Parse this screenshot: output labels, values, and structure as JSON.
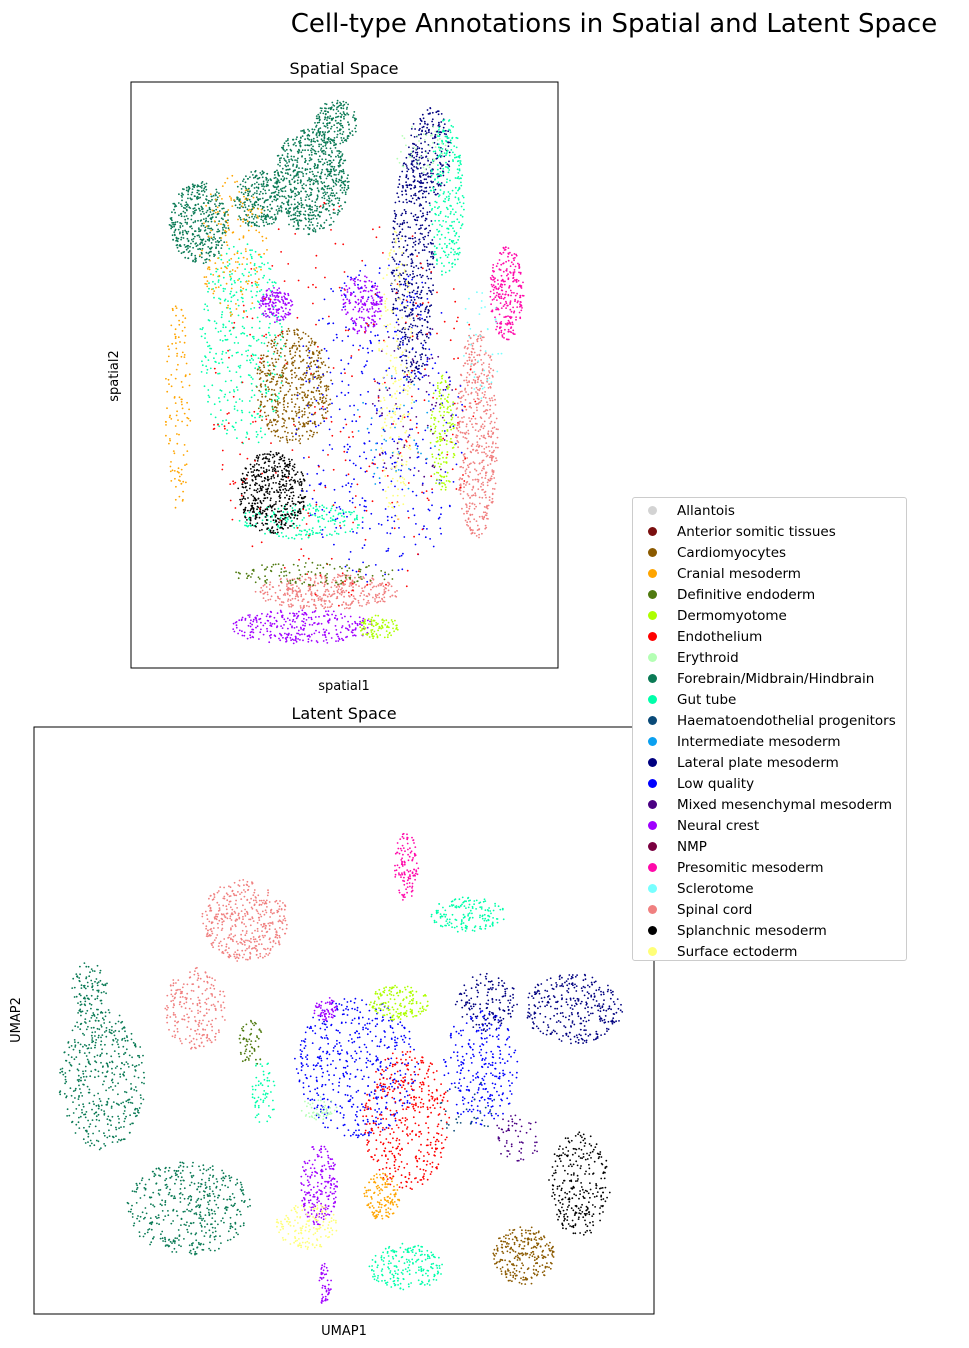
{
  "figure": {
    "title": "Cell-type Annotations in Spatial and Latent Space"
  },
  "categories": [
    {
      "name": "Allantois",
      "color": "#d3d3d3"
    },
    {
      "name": "Anterior somitic tissues",
      "color": "#7a0f0f"
    },
    {
      "name": "Cardiomyocytes",
      "color": "#8b5a00"
    },
    {
      "name": "Cranial mesoderm",
      "color": "#ffa500"
    },
    {
      "name": "Definitive endoderm",
      "color": "#4f7a10"
    },
    {
      "name": "Dermomyotome",
      "color": "#adff00"
    },
    {
      "name": "Endothelium",
      "color": "#ff0000"
    },
    {
      "name": "Erythroid",
      "color": "#b4ffb4"
    },
    {
      "name": "Forebrain/Midbrain/Hindbrain",
      "color": "#0a7a55"
    },
    {
      "name": "Gut tube",
      "color": "#00ffaa"
    },
    {
      "name": "Haematoendothelial progenitors",
      "color": "#0a4a78"
    },
    {
      "name": "Intermediate mesoderm",
      "color": "#0aa0f0"
    },
    {
      "name": "Lateral plate mesoderm",
      "color": "#000080"
    },
    {
      "name": "Low quality",
      "color": "#0000ff"
    },
    {
      "name": "Mixed mesenchymal mesoderm",
      "color": "#4b0082"
    },
    {
      "name": "Neural crest",
      "color": "#a000ff"
    },
    {
      "name": "NMP",
      "color": "#7a0040"
    },
    {
      "name": "Presomitic mesoderm",
      "color": "#ff0aaa"
    },
    {
      "name": "Sclerotome",
      "color": "#78ffff"
    },
    {
      "name": "Spinal cord",
      "color": "#f08080"
    },
    {
      "name": "Splanchnic mesoderm",
      "color": "#000000"
    },
    {
      "name": "Surface ectoderm",
      "color": "#ffff78"
    }
  ],
  "chart_data": [
    {
      "type": "scatter",
      "title": "Spatial Space",
      "xlabel": "spatial1",
      "ylabel": "spatial2",
      "ticks": "none",
      "legend": "right",
      "regions": [
        {
          "category": "Forebrain/Midbrain/Hindbrain",
          "cx": 0.42,
          "cy": 0.83,
          "rx": 0.09,
          "ry": 0.09,
          "n": 700
        },
        {
          "category": "Forebrain/Midbrain/Hindbrain",
          "cx": 0.16,
          "cy": 0.76,
          "rx": 0.07,
          "ry": 0.07,
          "n": 420
        },
        {
          "category": "Forebrain/Midbrain/Hindbrain",
          "cx": 0.3,
          "cy": 0.8,
          "rx": 0.06,
          "ry": 0.05,
          "n": 250
        },
        {
          "category": "Forebrain/Midbrain/Hindbrain",
          "cx": 0.48,
          "cy": 0.93,
          "rx": 0.05,
          "ry": 0.04,
          "n": 180
        },
        {
          "category": "Lateral plate mesoderm",
          "cx": 0.66,
          "cy": 0.68,
          "rx": 0.05,
          "ry": 0.2,
          "n": 500
        },
        {
          "category": "Lateral plate mesoderm",
          "cx": 0.7,
          "cy": 0.88,
          "rx": 0.05,
          "ry": 0.08,
          "n": 220
        },
        {
          "category": "Gut tube",
          "cx": 0.26,
          "cy": 0.55,
          "rx": 0.1,
          "ry": 0.18,
          "n": 380
        },
        {
          "category": "Gut tube",
          "cx": 0.74,
          "cy": 0.8,
          "rx": 0.04,
          "ry": 0.14,
          "n": 260
        },
        {
          "category": "Gut tube",
          "cx": 0.4,
          "cy": 0.25,
          "rx": 0.15,
          "ry": 0.03,
          "n": 200
        },
        {
          "category": "Cardiomyocytes",
          "cx": 0.38,
          "cy": 0.48,
          "rx": 0.09,
          "ry": 0.1,
          "n": 520
        },
        {
          "category": "Splanchnic mesoderm",
          "cx": 0.33,
          "cy": 0.3,
          "rx": 0.08,
          "ry": 0.07,
          "n": 500
        },
        {
          "category": "Spinal cord",
          "cx": 0.81,
          "cy": 0.4,
          "rx": 0.05,
          "ry": 0.18,
          "n": 520
        },
        {
          "category": "Spinal cord",
          "cx": 0.46,
          "cy": 0.13,
          "rx": 0.17,
          "ry": 0.03,
          "n": 380
        },
        {
          "category": "Presomitic mesoderm",
          "cx": 0.88,
          "cy": 0.64,
          "rx": 0.04,
          "ry": 0.08,
          "n": 260
        },
        {
          "category": "Neural crest",
          "cx": 0.4,
          "cy": 0.07,
          "rx": 0.17,
          "ry": 0.03,
          "n": 300
        },
        {
          "category": "Neural crest",
          "cx": 0.54,
          "cy": 0.62,
          "rx": 0.05,
          "ry": 0.05,
          "n": 180
        },
        {
          "category": "Neural crest",
          "cx": 0.34,
          "cy": 0.62,
          "rx": 0.04,
          "ry": 0.03,
          "n": 140
        },
        {
          "category": "Low quality",
          "cx": 0.58,
          "cy": 0.42,
          "rx": 0.2,
          "ry": 0.28,
          "n": 420
        },
        {
          "category": "Endothelium",
          "cx": 0.5,
          "cy": 0.45,
          "rx": 0.32,
          "ry": 0.35,
          "n": 260
        },
        {
          "category": "Cranial mesoderm",
          "cx": 0.24,
          "cy": 0.72,
          "rx": 0.08,
          "ry": 0.12,
          "n": 160
        },
        {
          "category": "Cranial mesoderm",
          "cx": 0.11,
          "cy": 0.45,
          "rx": 0.03,
          "ry": 0.18,
          "n": 120
        },
        {
          "category": "Dermomyotome",
          "cx": 0.73,
          "cy": 0.4,
          "rx": 0.03,
          "ry": 0.1,
          "n": 150
        },
        {
          "category": "Dermomyotome",
          "cx": 0.58,
          "cy": 0.07,
          "rx": 0.05,
          "ry": 0.02,
          "n": 90
        },
        {
          "category": "Surface ectoderm",
          "cx": 0.62,
          "cy": 0.5,
          "rx": 0.04,
          "ry": 0.25,
          "n": 220
        },
        {
          "category": "Definitive endoderm",
          "cx": 0.43,
          "cy": 0.16,
          "rx": 0.2,
          "ry": 0.02,
          "n": 120
        },
        {
          "category": "Mixed mesenchymal mesoderm",
          "cx": 0.66,
          "cy": 0.45,
          "rx": 0.1,
          "ry": 0.15,
          "n": 80
        },
        {
          "category": "Erythroid",
          "cx": 0.68,
          "cy": 0.88,
          "rx": 0.06,
          "ry": 0.05,
          "n": 50
        },
        {
          "category": "Sclerotome",
          "cx": 0.82,
          "cy": 0.55,
          "rx": 0.05,
          "ry": 0.1,
          "n": 40
        },
        {
          "category": "Intermediate mesoderm",
          "cx": 0.62,
          "cy": 0.4,
          "rx": 0.1,
          "ry": 0.1,
          "n": 40
        }
      ]
    },
    {
      "type": "scatter",
      "title": "Latent Space",
      "xlabel": "UMAP1",
      "ylabel": "UMAP2",
      "ticks": "none",
      "legend": "none",
      "regions": [
        {
          "category": "Forebrain/Midbrain/Hindbrain",
          "cx": 0.11,
          "cy": 0.4,
          "rx": 0.07,
          "ry": 0.12,
          "n": 450
        },
        {
          "category": "Forebrain/Midbrain/Hindbrain",
          "cx": 0.25,
          "cy": 0.18,
          "rx": 0.1,
          "ry": 0.08,
          "n": 450
        },
        {
          "category": "Forebrain/Midbrain/Hindbrain",
          "cx": 0.09,
          "cy": 0.55,
          "rx": 0.03,
          "ry": 0.05,
          "n": 100
        },
        {
          "category": "Spinal cord",
          "cx": 0.34,
          "cy": 0.67,
          "rx": 0.07,
          "ry": 0.07,
          "n": 420
        },
        {
          "category": "Spinal cord",
          "cx": 0.26,
          "cy": 0.52,
          "rx": 0.05,
          "ry": 0.07,
          "n": 220
        },
        {
          "category": "Presomitic mesoderm",
          "cx": 0.6,
          "cy": 0.76,
          "rx": 0.02,
          "ry": 0.06,
          "n": 120
        },
        {
          "category": "Gut tube",
          "cx": 0.7,
          "cy": 0.68,
          "rx": 0.06,
          "ry": 0.03,
          "n": 160
        },
        {
          "category": "Gut tube",
          "cx": 0.6,
          "cy": 0.08,
          "rx": 0.06,
          "ry": 0.04,
          "n": 200
        },
        {
          "category": "Gut tube",
          "cx": 0.37,
          "cy": 0.38,
          "rx": 0.02,
          "ry": 0.06,
          "n": 60
        },
        {
          "category": "Lateral plate mesoderm",
          "cx": 0.87,
          "cy": 0.52,
          "rx": 0.08,
          "ry": 0.06,
          "n": 320
        },
        {
          "category": "Lateral plate mesoderm",
          "cx": 0.73,
          "cy": 0.53,
          "rx": 0.05,
          "ry": 0.05,
          "n": 150
        },
        {
          "category": "Low quality",
          "cx": 0.52,
          "cy": 0.42,
          "rx": 0.1,
          "ry": 0.12,
          "n": 500
        },
        {
          "category": "Low quality",
          "cx": 0.72,
          "cy": 0.42,
          "rx": 0.06,
          "ry": 0.1,
          "n": 260
        },
        {
          "category": "Endothelium",
          "cx": 0.6,
          "cy": 0.33,
          "rx": 0.07,
          "ry": 0.12,
          "n": 420
        },
        {
          "category": "Splanchnic mesoderm",
          "cx": 0.88,
          "cy": 0.22,
          "rx": 0.05,
          "ry": 0.09,
          "n": 280
        },
        {
          "category": "Cardiomyocytes",
          "cx": 0.79,
          "cy": 0.1,
          "rx": 0.05,
          "ry": 0.05,
          "n": 260
        },
        {
          "category": "Neural crest",
          "cx": 0.46,
          "cy": 0.22,
          "rx": 0.03,
          "ry": 0.07,
          "n": 200
        },
        {
          "category": "Neural crest",
          "cx": 0.47,
          "cy": 0.05,
          "rx": 0.01,
          "ry": 0.04,
          "n": 50
        },
        {
          "category": "Neural crest",
          "cx": 0.47,
          "cy": 0.52,
          "rx": 0.02,
          "ry": 0.02,
          "n": 60
        },
        {
          "category": "Cranial mesoderm",
          "cx": 0.56,
          "cy": 0.2,
          "rx": 0.03,
          "ry": 0.04,
          "n": 140
        },
        {
          "category": "Surface ectoderm",
          "cx": 0.44,
          "cy": 0.15,
          "rx": 0.05,
          "ry": 0.04,
          "n": 150
        },
        {
          "category": "Dermomyotome",
          "cx": 0.59,
          "cy": 0.53,
          "rx": 0.05,
          "ry": 0.03,
          "n": 160
        },
        {
          "category": "Definitive endoderm",
          "cx": 0.35,
          "cy": 0.46,
          "rx": 0.02,
          "ry": 0.04,
          "n": 60
        },
        {
          "category": "Mixed mesenchymal mesoderm",
          "cx": 0.78,
          "cy": 0.3,
          "rx": 0.04,
          "ry": 0.04,
          "n": 60
        },
        {
          "category": "Erythroid",
          "cx": 0.46,
          "cy": 0.35,
          "rx": 0.03,
          "ry": 0.02,
          "n": 50
        },
        {
          "category": "Haematoendothelial progenitors",
          "cx": 0.7,
          "cy": 0.35,
          "rx": 0.05,
          "ry": 0.05,
          "n": 30
        }
      ]
    }
  ]
}
